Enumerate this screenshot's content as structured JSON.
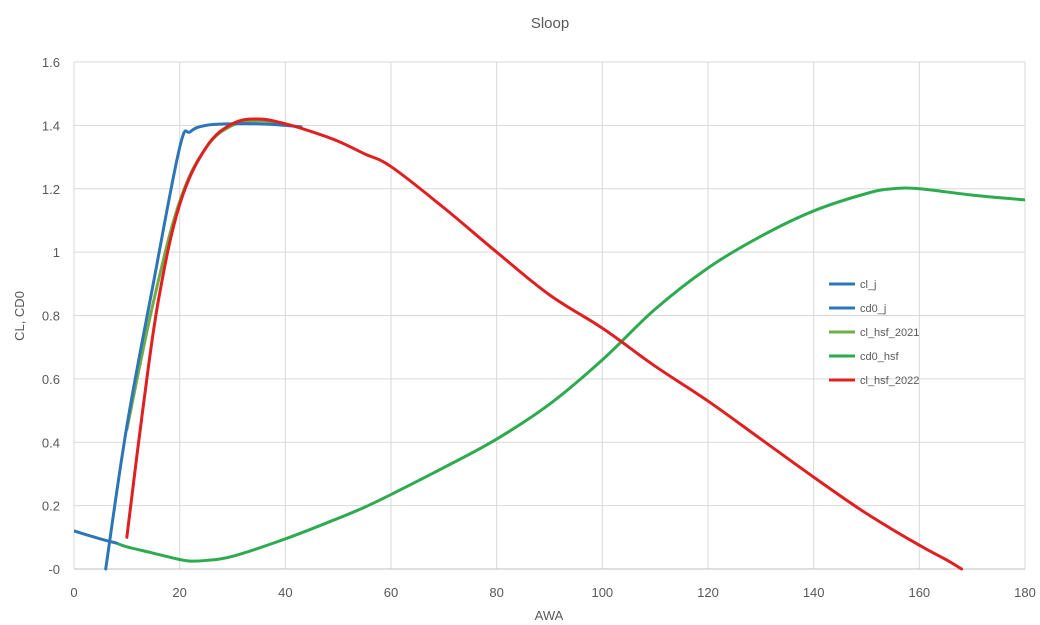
{
  "chart_data": {
    "type": "line",
    "title": "Sloop",
    "xlabel": "AWA",
    "ylabel": "CL, CD0",
    "xlim": [
      0,
      180
    ],
    "ylim": [
      0,
      1.6
    ],
    "x_ticks": [
      "0",
      "20",
      "40",
      "60",
      "80",
      "100",
      "120",
      "140",
      "160",
      "180"
    ],
    "y_ticks": [
      "-0",
      "0.2",
      "0.4",
      "0.6",
      "0.8",
      "1",
      "1.2",
      "1.4",
      "1.6"
    ],
    "grid": true,
    "legend_position": "right",
    "series": [
      {
        "name": "cl_j",
        "color": "#2e75b6",
        "points": [
          [
            6,
            0
          ],
          [
            10,
            0.45
          ],
          [
            15,
            0.9
          ],
          [
            20,
            1.33
          ],
          [
            22,
            1.38
          ],
          [
            25,
            1.4
          ],
          [
            30,
            1.405
          ],
          [
            35,
            1.405
          ],
          [
            40,
            1.4
          ],
          [
            43,
            1.395
          ]
        ]
      },
      {
        "name": "cd0_j",
        "color": "#2e75b6",
        "points": [
          [
            0,
            0.12
          ],
          [
            5,
            0.095
          ],
          [
            8,
            0.082
          ]
        ]
      },
      {
        "name": "cl_hsf_2021",
        "color": "#70ad47",
        "points": [
          [
            10,
            0.44
          ],
          [
            15,
            0.84
          ],
          [
            20,
            1.16
          ],
          [
            25,
            1.33
          ],
          [
            30,
            1.4
          ],
          [
            35,
            1.415
          ],
          [
            40,
            1.405
          ]
        ]
      },
      {
        "name": "cd0_hsf",
        "color": "#2eaa4f",
        "points": [
          [
            8,
            0.082
          ],
          [
            10,
            0.07
          ],
          [
            15,
            0.05
          ],
          [
            20,
            0.03
          ],
          [
            22,
            0.025
          ],
          [
            25,
            0.027
          ],
          [
            30,
            0.04
          ],
          [
            40,
            0.095
          ],
          [
            50,
            0.16
          ],
          [
            55,
            0.195
          ],
          [
            60,
            0.235
          ],
          [
            70,
            0.32
          ],
          [
            80,
            0.41
          ],
          [
            90,
            0.52
          ],
          [
            100,
            0.66
          ],
          [
            110,
            0.82
          ],
          [
            120,
            0.95
          ],
          [
            130,
            1.05
          ],
          [
            140,
            1.13
          ],
          [
            150,
            1.185
          ],
          [
            155,
            1.2
          ],
          [
            160,
            1.2
          ],
          [
            170,
            1.18
          ],
          [
            180,
            1.165
          ]
        ]
      },
      {
        "name": "cl_hsf_2022",
        "color": "#e02020",
        "points": [
          [
            10,
            0.1
          ],
          [
            13,
            0.5
          ],
          [
            16,
            0.85
          ],
          [
            20,
            1.15
          ],
          [
            25,
            1.33
          ],
          [
            30,
            1.405
          ],
          [
            35,
            1.42
          ],
          [
            40,
            1.405
          ],
          [
            45,
            1.38
          ],
          [
            50,
            1.35
          ],
          [
            55,
            1.31
          ],
          [
            60,
            1.27
          ],
          [
            70,
            1.14
          ],
          [
            80,
            1.0
          ],
          [
            90,
            0.865
          ],
          [
            100,
            0.76
          ],
          [
            110,
            0.64
          ],
          [
            120,
            0.53
          ],
          [
            130,
            0.41
          ],
          [
            140,
            0.29
          ],
          [
            150,
            0.175
          ],
          [
            160,
            0.075
          ],
          [
            165,
            0.03
          ],
          [
            168,
            0.0
          ]
        ]
      }
    ]
  }
}
